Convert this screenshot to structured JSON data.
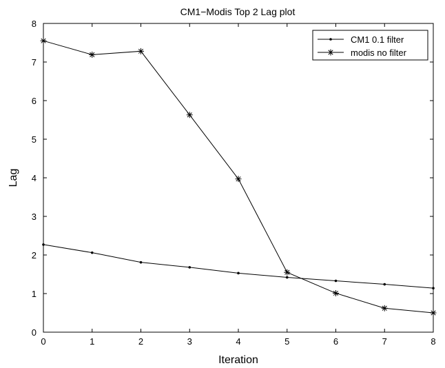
{
  "chart_data": {
    "type": "line",
    "title": "CM1−Modis Top 2 Lag plot",
    "xlabel": "Iteration",
    "ylabel": "Lag",
    "xlim": [
      0,
      8
    ],
    "ylim": [
      0,
      8
    ],
    "xticks": [
      "0",
      "1",
      "2",
      "3",
      "4",
      "5",
      "6",
      "7",
      "8"
    ],
    "yticks": [
      "0",
      "1",
      "2",
      "3",
      "4",
      "5",
      "6",
      "7",
      "8"
    ],
    "grid": false,
    "legend_position": "top-right",
    "x": [
      0,
      1,
      2,
      3,
      4,
      5,
      6,
      7,
      8
    ],
    "series": [
      {
        "name": "CM1 0.1 filter",
        "marker": "dot",
        "values": [
          2.27,
          2.06,
          1.81,
          1.68,
          1.53,
          1.42,
          1.33,
          1.24,
          1.14
        ]
      },
      {
        "name": "modis no filter",
        "marker": "star",
        "values": [
          7.55,
          7.19,
          7.28,
          5.63,
          3.97,
          1.55,
          1.01,
          0.62,
          0.5
        ]
      }
    ]
  }
}
